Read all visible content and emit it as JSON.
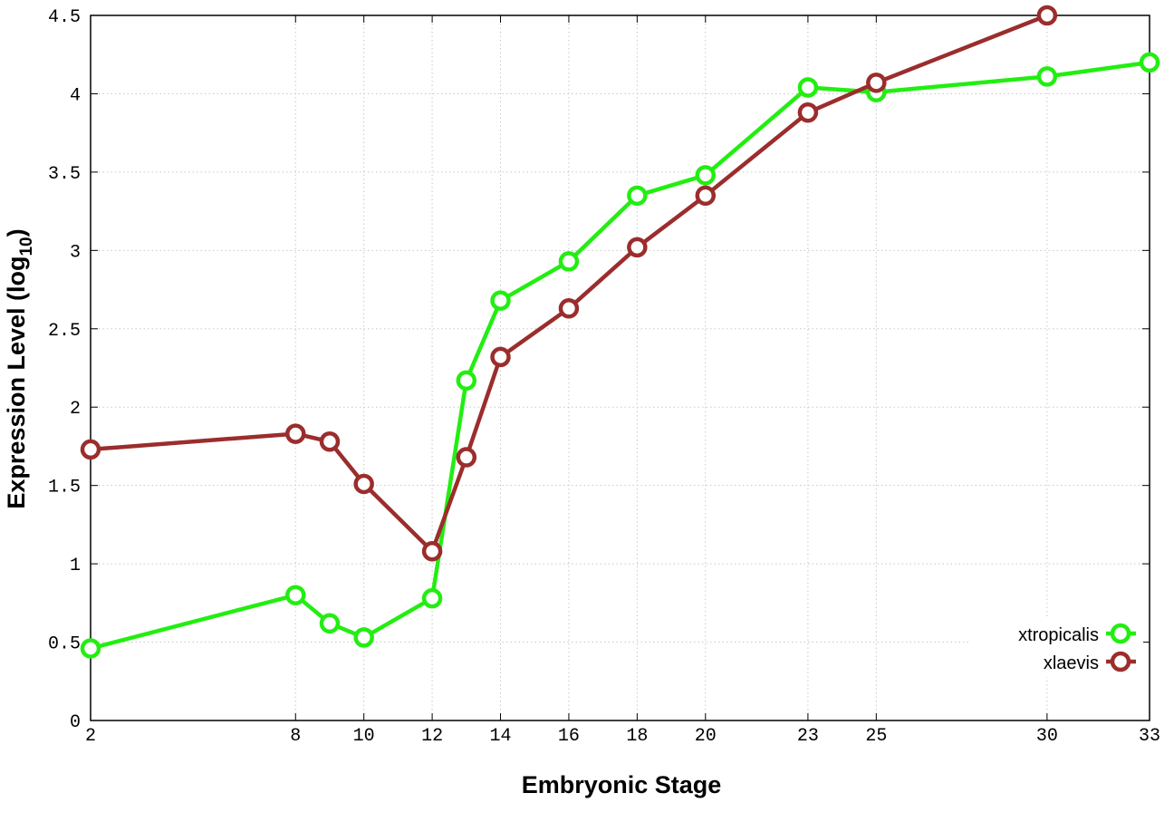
{
  "chart_data": {
    "type": "line",
    "xlabel": "Embryonic Stage",
    "ylabel": "Expression Level (log",
    "ylabel_subscript": "10",
    "ylabel_close": ")",
    "x_ticks": [
      "2",
      "8",
      "10",
      "12",
      "14",
      "16",
      "18",
      "20",
      "23",
      "25",
      "30",
      "33"
    ],
    "y_ticks": [
      "0",
      "0.5",
      "1",
      "1.5",
      "2",
      "2.5",
      "3",
      "3.5",
      "4",
      "4.5"
    ],
    "xlim": [
      2,
      33
    ],
    "ylim": [
      0,
      4.5
    ],
    "grid": true,
    "legend_position": "bottom-right",
    "series": [
      {
        "name": "xtropicalis",
        "color": "#22ee11",
        "points": [
          [
            2,
            0.46
          ],
          [
            8,
            0.8
          ],
          [
            9,
            0.62
          ],
          [
            10,
            0.53
          ],
          [
            12,
            0.78
          ],
          [
            13,
            2.17
          ],
          [
            14,
            2.68
          ],
          [
            16,
            2.93
          ],
          [
            18,
            3.35
          ],
          [
            20,
            3.48
          ],
          [
            23,
            4.04
          ],
          [
            25,
            4.01
          ],
          [
            30,
            4.11
          ],
          [
            33,
            4.2
          ]
        ]
      },
      {
        "name": "xlaevis",
        "color": "#9b2d2d",
        "points": [
          [
            2,
            1.73
          ],
          [
            8,
            1.83
          ],
          [
            9,
            1.78
          ],
          [
            10,
            1.51
          ],
          [
            12,
            1.08
          ],
          [
            13,
            1.68
          ],
          [
            14,
            2.32
          ],
          [
            16,
            2.63
          ],
          [
            18,
            3.02
          ],
          [
            20,
            3.35
          ],
          [
            23,
            3.88
          ],
          [
            25,
            4.07
          ],
          [
            30,
            4.5
          ]
        ]
      }
    ]
  }
}
